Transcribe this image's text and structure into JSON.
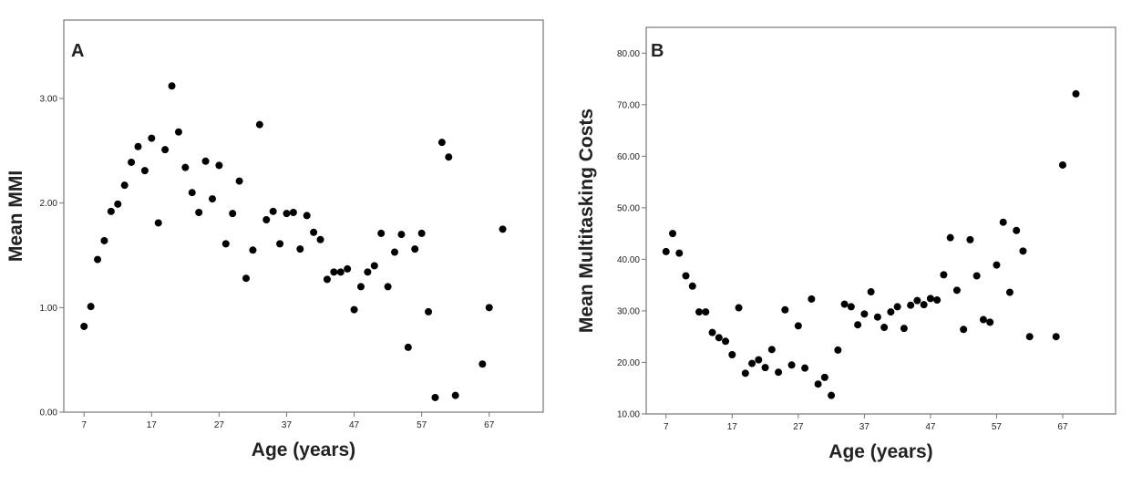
{
  "colors": {
    "point": "#000000",
    "frame": "#777777",
    "text": "#222222"
  },
  "chart_data": [
    {
      "type": "scatter",
      "panel_label": "A",
      "xlabel": "Age (years)",
      "ylabel": "Mean MMI",
      "xlim": [
        4,
        75
      ],
      "ylim": [
        0,
        3.75
      ],
      "xticks": [
        7,
        17,
        27,
        37,
        47,
        57,
        67
      ],
      "xtick_labels": [
        "7",
        "17",
        "27",
        "37",
        "47",
        "57",
        "67"
      ],
      "yticks": [
        0,
        1,
        2,
        3
      ],
      "ytick_labels": [
        "0.00",
        "1.00",
        "2.00",
        "3.00"
      ],
      "grid": false,
      "legend": "none",
      "points": [
        [
          7,
          0.82
        ],
        [
          8,
          1.01
        ],
        [
          9,
          1.46
        ],
        [
          10,
          1.64
        ],
        [
          11,
          1.92
        ],
        [
          12,
          1.99
        ],
        [
          13,
          2.17
        ],
        [
          14,
          2.39
        ],
        [
          15,
          2.54
        ],
        [
          16,
          2.31
        ],
        [
          17,
          2.62
        ],
        [
          18,
          1.81
        ],
        [
          19,
          2.51
        ],
        [
          20,
          3.12
        ],
        [
          21,
          2.68
        ],
        [
          22,
          2.34
        ],
        [
          23,
          2.1
        ],
        [
          24,
          1.91
        ],
        [
          25,
          2.4
        ],
        [
          26,
          2.04
        ],
        [
          27,
          2.36
        ],
        [
          28,
          1.61
        ],
        [
          29,
          1.9
        ],
        [
          30,
          2.21
        ],
        [
          31,
          1.28
        ],
        [
          32,
          1.55
        ],
        [
          33,
          2.75
        ],
        [
          34,
          1.84
        ],
        [
          35,
          1.92
        ],
        [
          36,
          1.61
        ],
        [
          37,
          1.9
        ],
        [
          38,
          1.91
        ],
        [
          39,
          1.56
        ],
        [
          40,
          1.88
        ],
        [
          41,
          1.72
        ],
        [
          42,
          1.65
        ],
        [
          43,
          1.27
        ],
        [
          44,
          1.34
        ],
        [
          45,
          1.34
        ],
        [
          46,
          1.37
        ],
        [
          47,
          0.98
        ],
        [
          48,
          1.2
        ],
        [
          49,
          1.34
        ],
        [
          50,
          1.4
        ],
        [
          51,
          1.71
        ],
        [
          52,
          1.2
        ],
        [
          53,
          1.53
        ],
        [
          54,
          1.7
        ],
        [
          55,
          0.62
        ],
        [
          56,
          1.56
        ],
        [
          57,
          1.71
        ],
        [
          58,
          0.96
        ],
        [
          59,
          0.14
        ],
        [
          60,
          2.58
        ],
        [
          61,
          2.44
        ],
        [
          62,
          0.16
        ],
        [
          66,
          0.46
        ],
        [
          67,
          1.0
        ],
        [
          69,
          1.75
        ]
      ]
    },
    {
      "type": "scatter",
      "panel_label": "B",
      "xlabel": "Age (years)",
      "ylabel": "Mean Multitasking Costs",
      "xlim": [
        4,
        75
      ],
      "ylim": [
        10,
        85
      ],
      "xticks": [
        7,
        17,
        27,
        37,
        47,
        57,
        67
      ],
      "xtick_labels": [
        "7",
        "17",
        "27",
        "37",
        "47",
        "57",
        "67"
      ],
      "yticks": [
        10,
        20,
        30,
        40,
        50,
        60,
        70,
        80
      ],
      "ytick_labels": [
        "10.00",
        "20.00",
        "30.00",
        "40.00",
        "50.00",
        "60.00",
        "70.00",
        "80.00"
      ],
      "grid": false,
      "legend": "none",
      "points": [
        [
          7,
          41.5
        ],
        [
          8,
          45.0
        ],
        [
          9,
          41.2
        ],
        [
          10,
          36.8
        ],
        [
          11,
          34.8
        ],
        [
          12,
          29.8
        ],
        [
          13,
          29.8
        ],
        [
          14,
          25.8
        ],
        [
          15,
          24.8
        ],
        [
          16,
          24.1
        ],
        [
          17,
          21.5
        ],
        [
          18,
          30.6
        ],
        [
          19,
          17.9
        ],
        [
          20,
          19.8
        ],
        [
          21,
          20.5
        ],
        [
          22,
          19.0
        ],
        [
          23,
          22.5
        ],
        [
          24,
          18.1
        ],
        [
          25,
          30.2
        ],
        [
          26,
          19.5
        ],
        [
          27,
          27.1
        ],
        [
          28,
          18.9
        ],
        [
          29,
          32.3
        ],
        [
          30,
          15.8
        ],
        [
          31,
          17.1
        ],
        [
          32,
          13.6
        ],
        [
          33,
          22.4
        ],
        [
          34,
          31.3
        ],
        [
          35,
          30.8
        ],
        [
          36,
          27.3
        ],
        [
          37,
          29.4
        ],
        [
          38,
          33.7
        ],
        [
          39,
          28.8
        ],
        [
          40,
          26.8
        ],
        [
          41,
          29.8
        ],
        [
          42,
          30.8
        ],
        [
          43,
          26.6
        ],
        [
          44,
          31.1
        ],
        [
          45,
          32.0
        ],
        [
          46,
          31.2
        ],
        [
          47,
          32.4
        ],
        [
          48,
          32.1
        ],
        [
          49,
          37.0
        ],
        [
          50,
          44.2
        ],
        [
          51,
          34.0
        ],
        [
          52,
          26.4
        ],
        [
          53,
          43.8
        ],
        [
          54,
          36.8
        ],
        [
          55,
          28.3
        ],
        [
          56,
          27.8
        ],
        [
          57,
          38.9
        ],
        [
          58,
          47.2
        ],
        [
          59,
          33.6
        ],
        [
          60,
          45.6
        ],
        [
          61,
          41.6
        ],
        [
          62,
          25.0
        ],
        [
          66,
          25.0
        ],
        [
          67,
          58.3
        ],
        [
          69,
          72.1
        ]
      ]
    }
  ]
}
